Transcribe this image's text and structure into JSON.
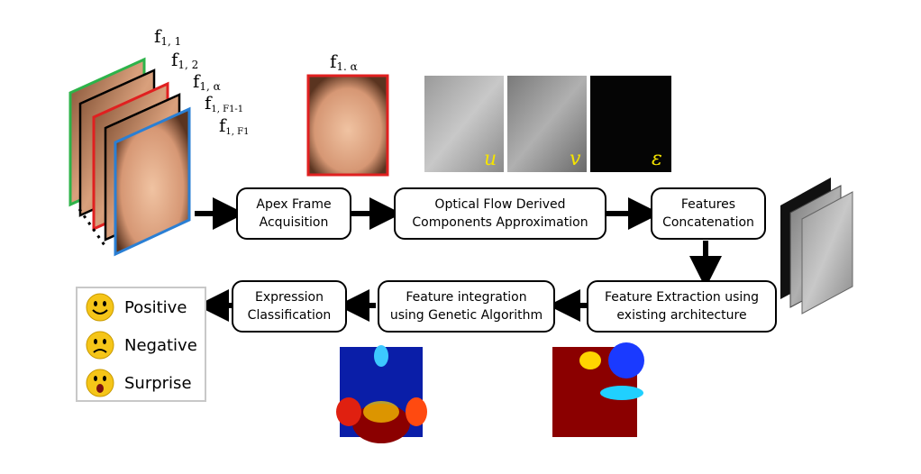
{
  "frame_labels": {
    "f11": {
      "base": "f",
      "sub": "1, 1"
    },
    "f12": {
      "base": "f",
      "sub": "1, 2"
    },
    "f1a": {
      "base": "f",
      "sub": "1, α"
    },
    "f1F1m1": {
      "base": "f",
      "sub": "1, F1-1"
    },
    "f1F1": {
      "base": "f",
      "sub": "1, F1"
    },
    "apex": {
      "base": "f",
      "sub": "1. α"
    }
  },
  "flow_labels": {
    "u": "u",
    "v": "v",
    "eps": "ε"
  },
  "boxes": {
    "apex": [
      "Apex Frame",
      "Acquisition"
    ],
    "optical": [
      "Optical Flow Derived",
      "Components Approximation"
    ],
    "concat": [
      "Features",
      "Concatenation"
    ],
    "extract": [
      "Feature Extraction using",
      "existing architecture"
    ],
    "genetic": [
      "Feature integration",
      "using Genetic Algorithm"
    ],
    "classify": [
      "Expression",
      "Classification"
    ]
  },
  "legend": [
    "Positive",
    "Negative",
    "Surprise"
  ],
  "colors": {
    "green": "#2db34a",
    "red": "#e02020",
    "blue": "#2a7fd4",
    "flow_label": "#f5e400",
    "emoji": "#f5c518"
  }
}
